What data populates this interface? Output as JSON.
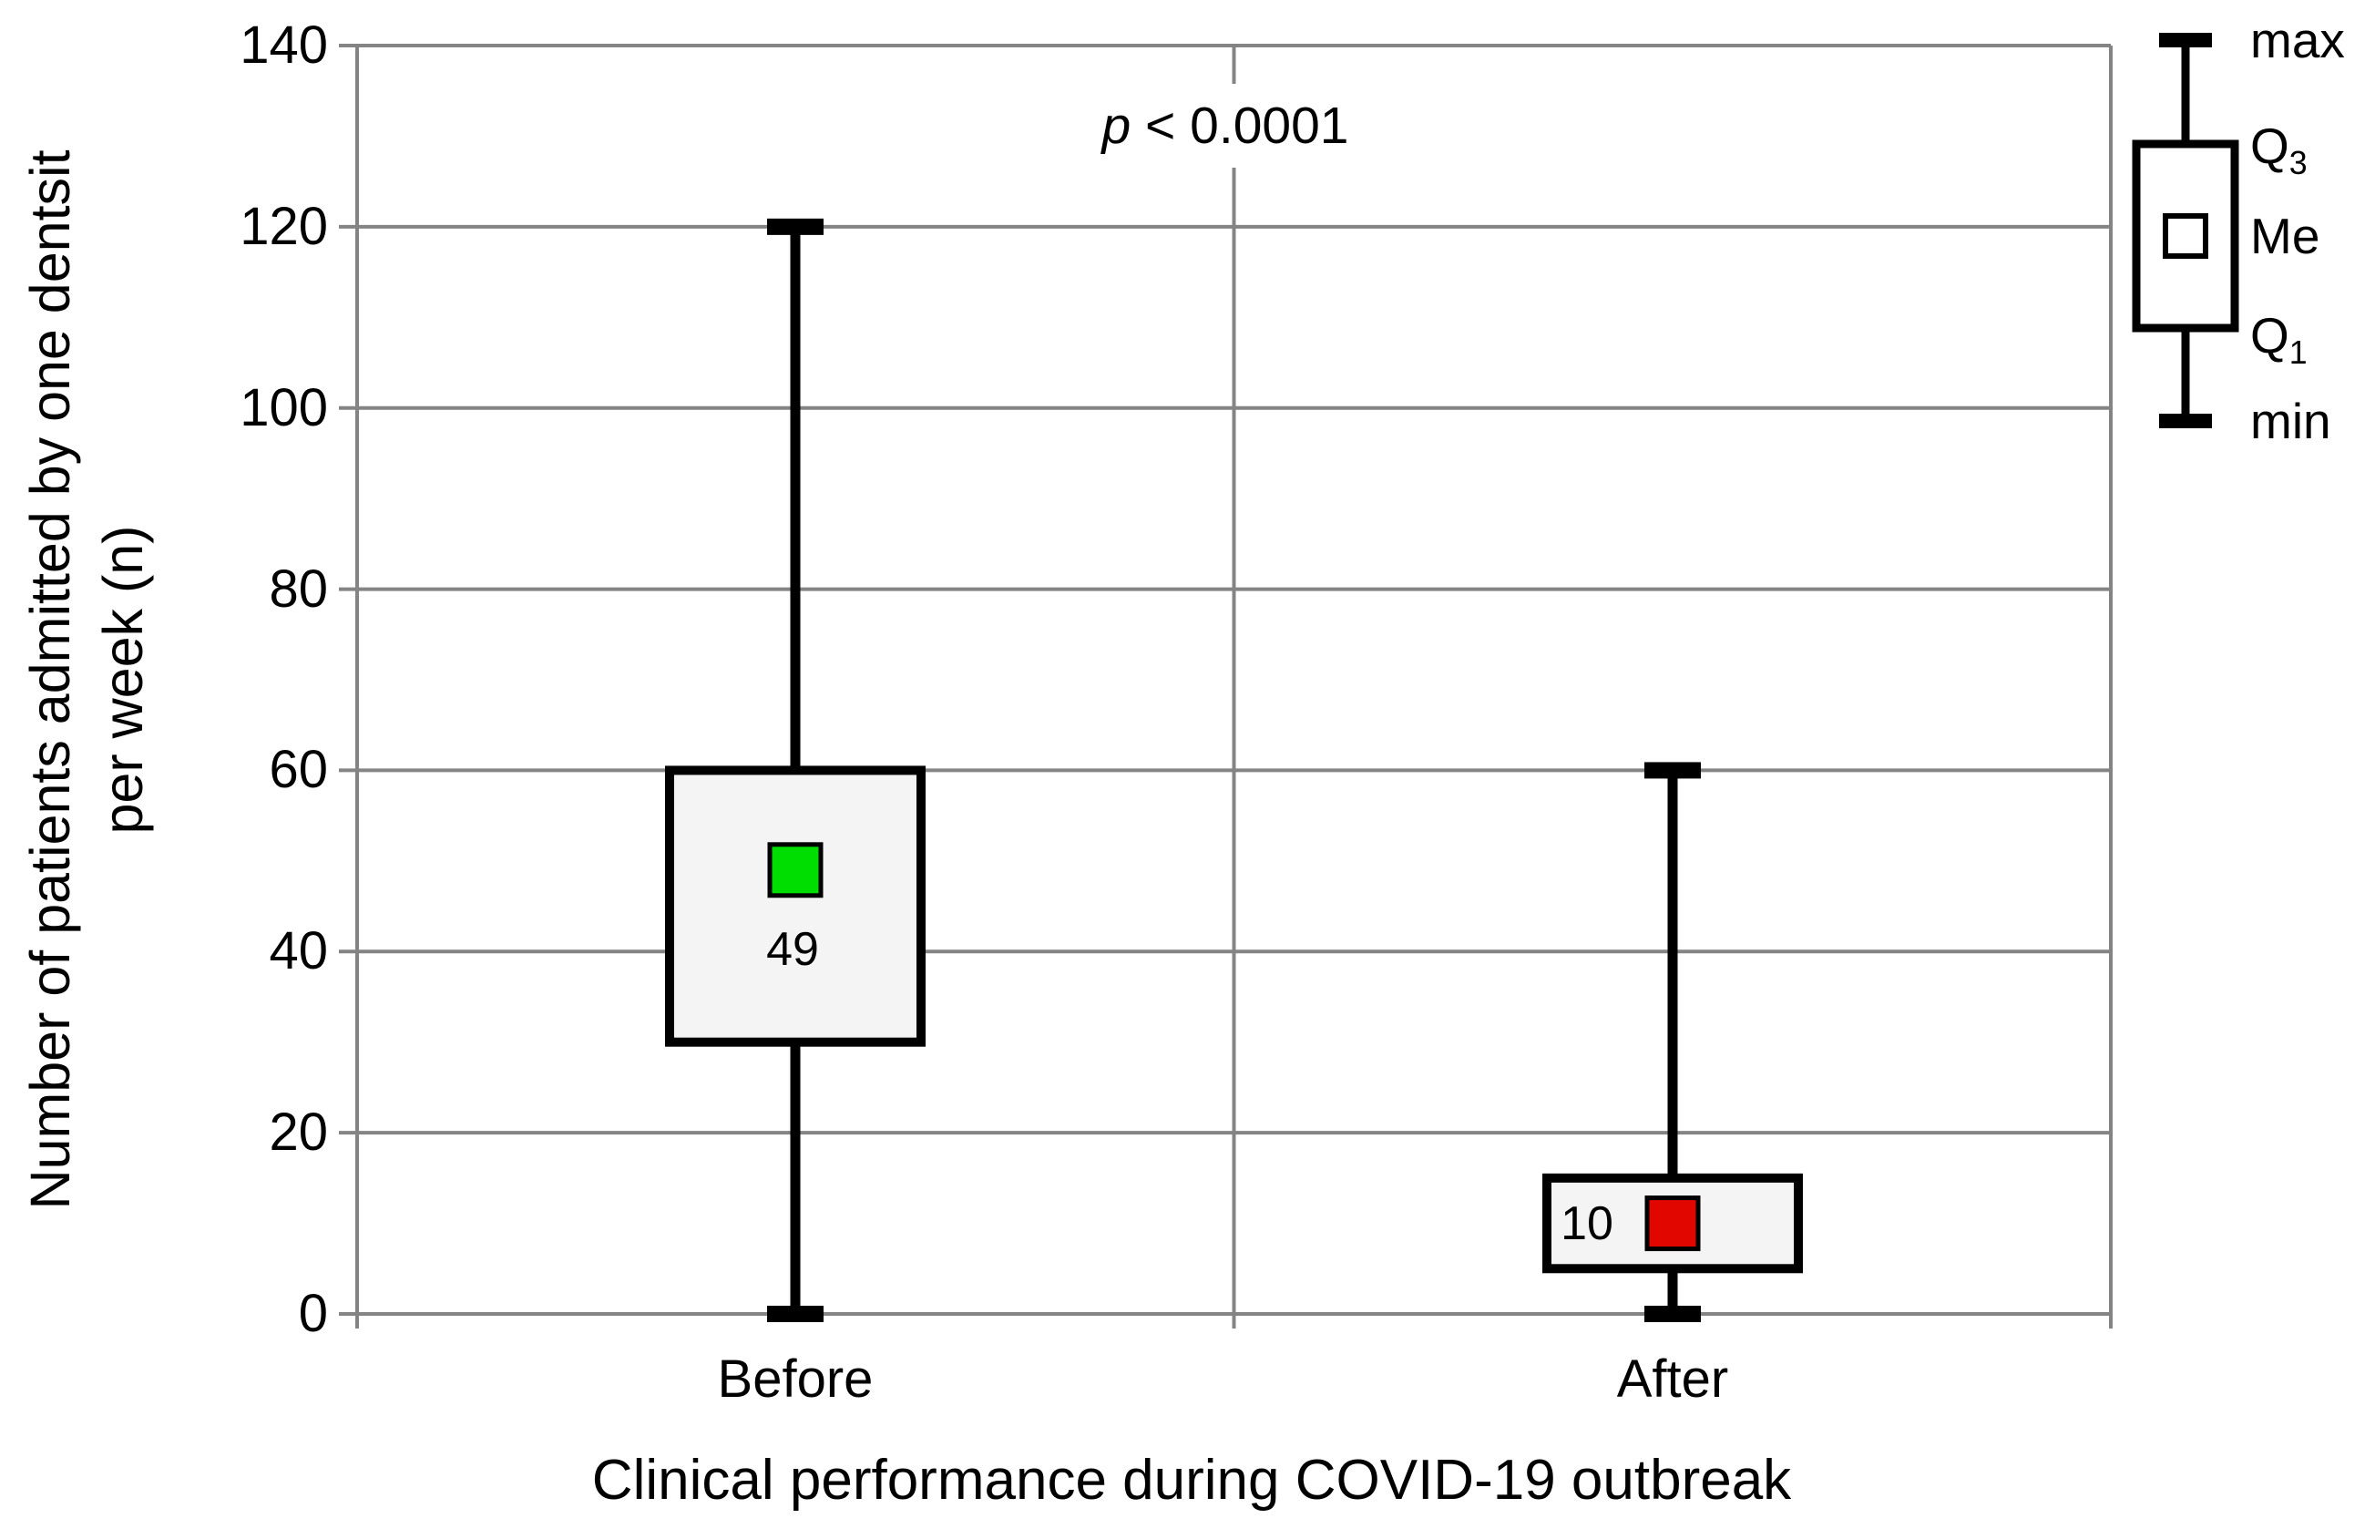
{
  "chart_data": {
    "type": "boxplot",
    "xlabel": "Clinical performance during COVID-19 outbreak",
    "ylabel_line1": "Number of patients admitted by one dentsit",
    "ylabel_line2": "per week (n)",
    "annotation": {
      "p_symbol": "p",
      "p_text": " < 0.0001"
    },
    "y_axis": {
      "min": 0,
      "max": 140,
      "tick_interval": 20,
      "ticks": [
        0,
        20,
        40,
        60,
        80,
        100,
        120,
        140
      ],
      "grid": true
    },
    "categories": [
      "Before",
      "After"
    ],
    "series": [
      {
        "name": "Before",
        "min": 0,
        "q1": 30,
        "median": 49,
        "q3": 60,
        "max": 120,
        "median_label": "49",
        "median_label_position": "below",
        "marker_color": "#00dd00"
      },
      {
        "name": "After",
        "min": 0,
        "q1": 5,
        "median": 10,
        "q3": 15,
        "max": 60,
        "median_label": "10",
        "median_label_position": "left",
        "marker_color": "#e10600"
      }
    ],
    "legend": {
      "position": "top-right",
      "entries": [
        {
          "label": "max",
          "sub": ""
        },
        {
          "label": "Q",
          "sub": "3"
        },
        {
          "label": "Me",
          "sub": ""
        },
        {
          "label": "Q",
          "sub": "1"
        },
        {
          "label": "min",
          "sub": ""
        }
      ]
    },
    "colors": {
      "grid_line": "#848484",
      "axis_line": "#848484",
      "box_border": "#000000",
      "box_fill": "#f4f4f4",
      "whisker": "#000000",
      "before_marker": "#00dd00",
      "after_marker": "#e10600",
      "text": "#000000",
      "legend_box_fill": "#ffffff"
    }
  }
}
